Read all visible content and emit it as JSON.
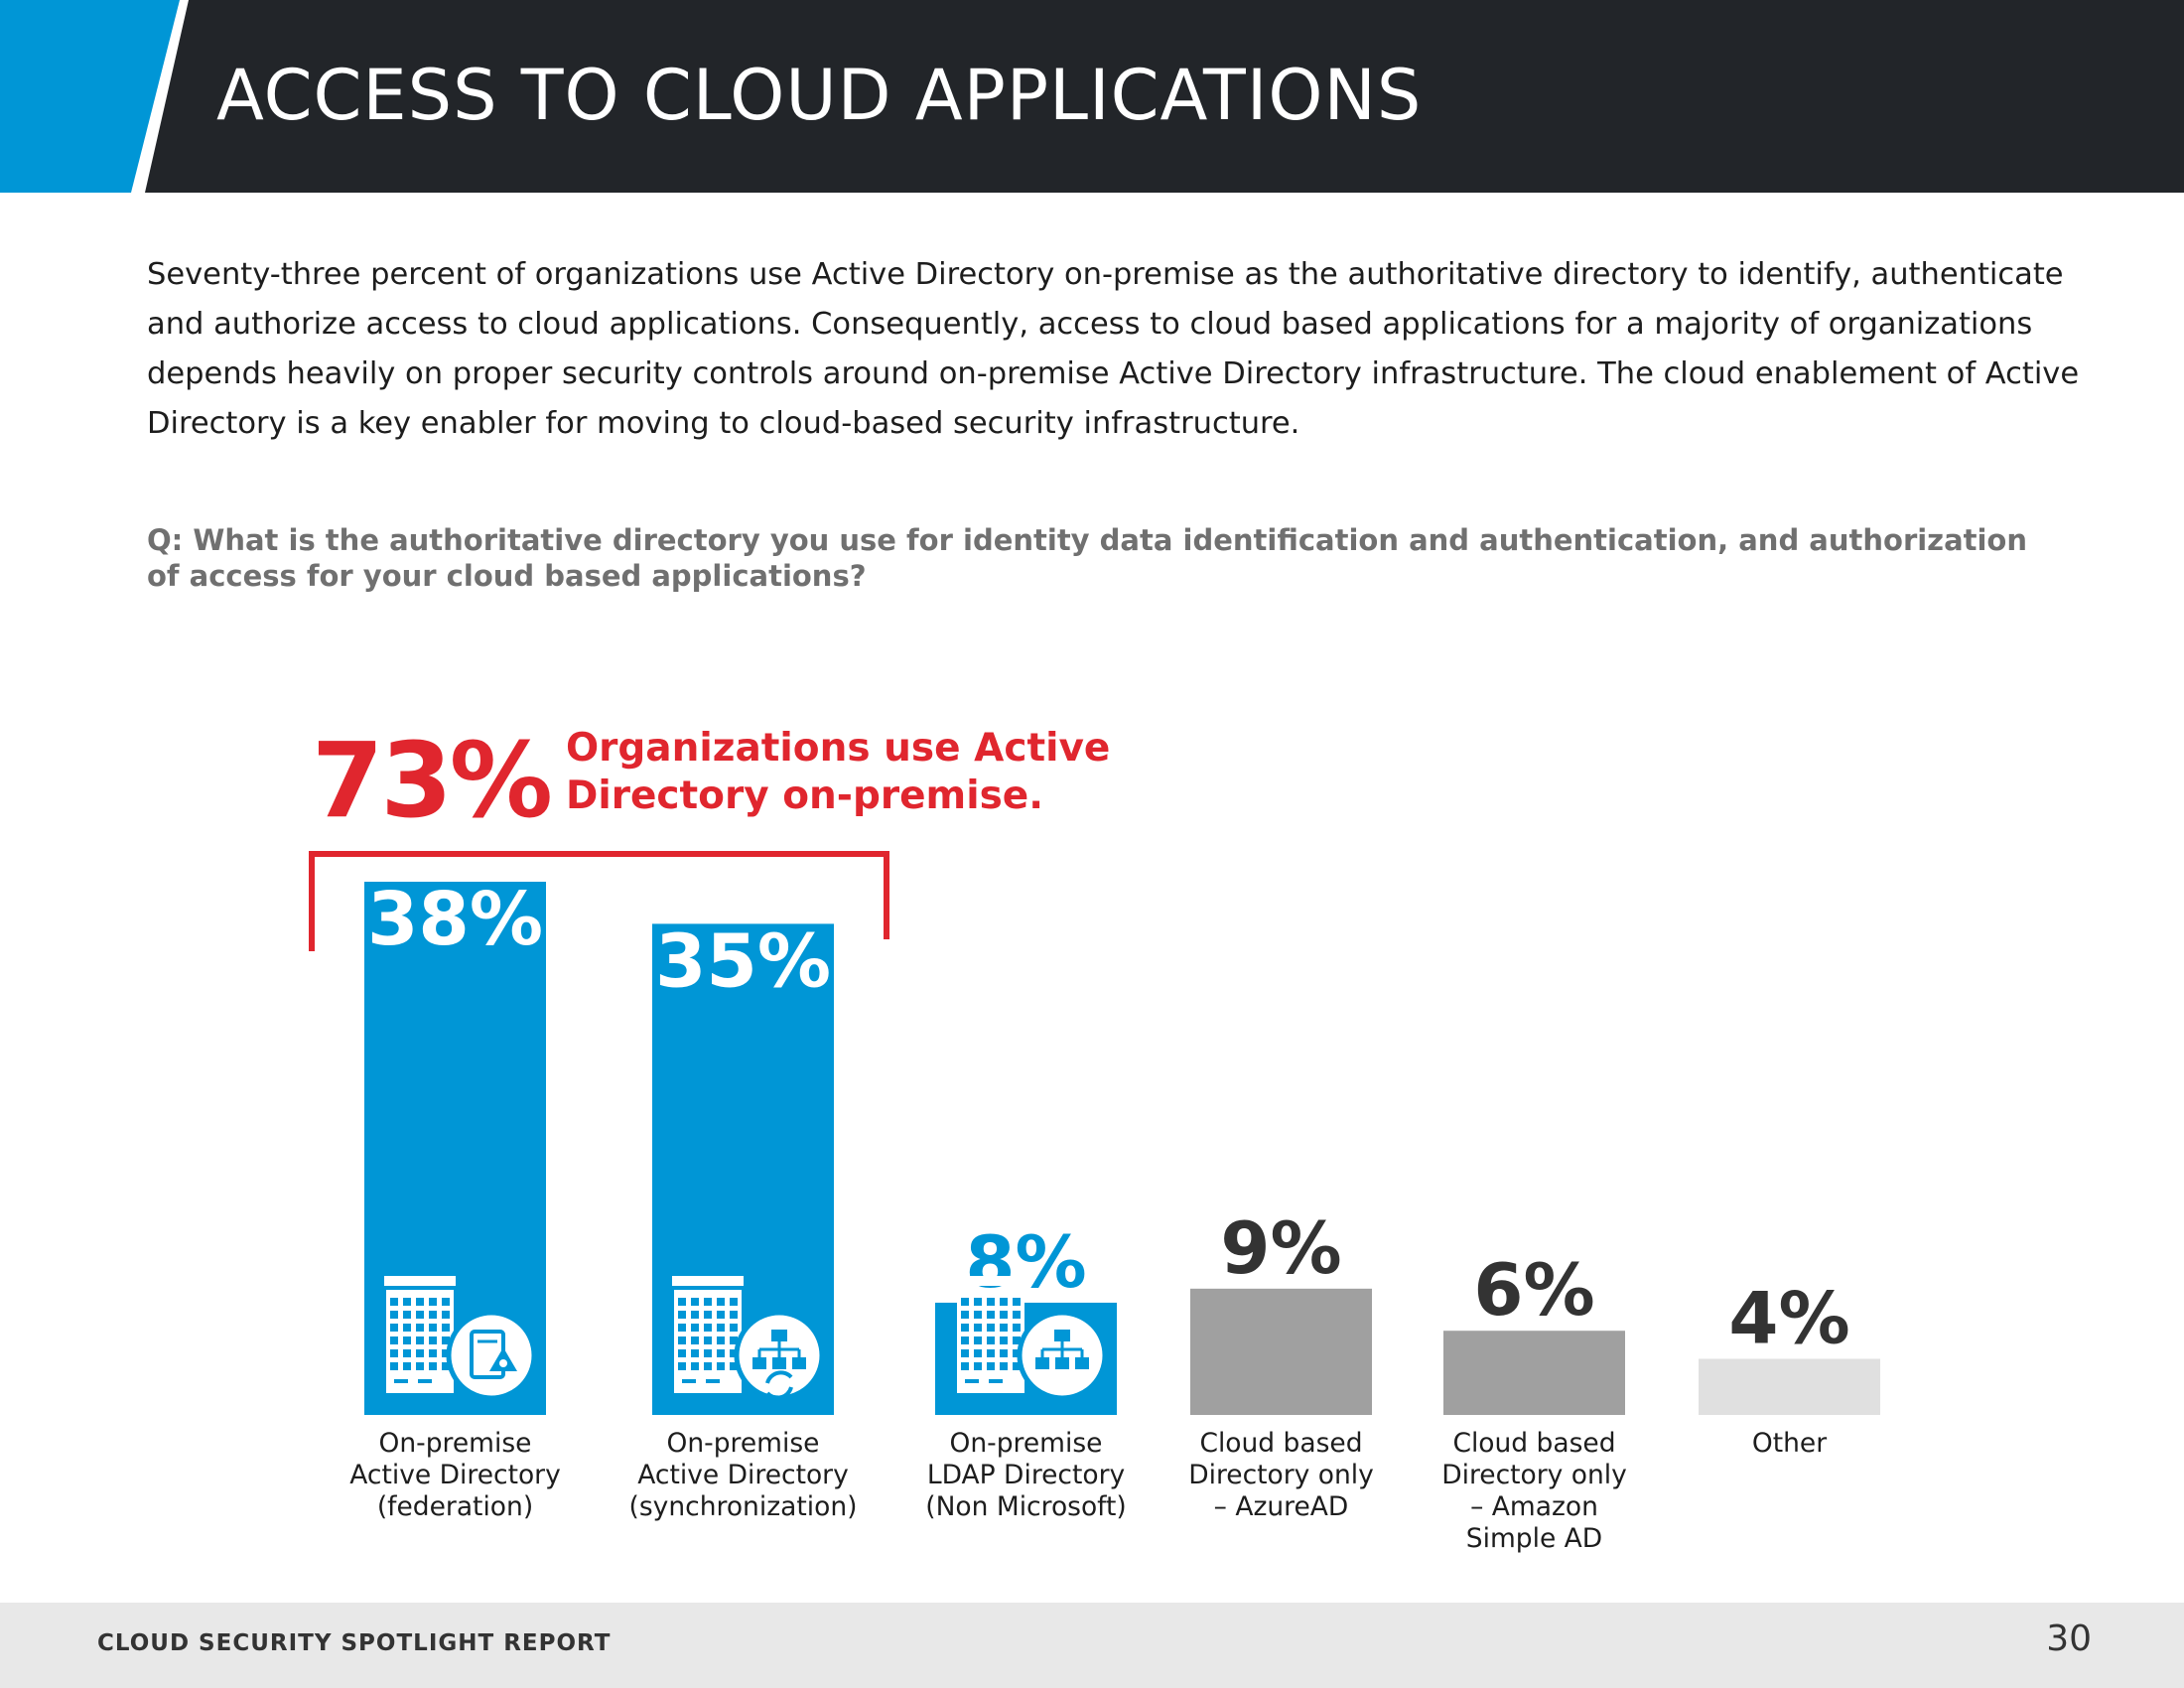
{
  "header": {
    "title": "ACCESS TO CLOUD APPLICATIONS",
    "accent_color": "#0096d6",
    "bar_color": "#222529"
  },
  "intro_text": "Seventy-three percent of organizations use Active Directory on-premise as the authoritative directory to identify, authenticate and authorize access to cloud applications. Consequently, access to cloud based applications for a majority of organizations depends heavily on proper security controls around on-premise Active Directory infrastructure. The cloud enablement of Active Directory is a key enabler for moving to cloud-based security infrastructure.",
  "question": "Q: What is the authoritative directory you use for identity data identification and authentication, and authorization of access for your cloud based applications?",
  "callout": {
    "value": "73%",
    "text": "Organizations use Active Directory on-premise.",
    "color": "#e0262e"
  },
  "chart_data": {
    "type": "bar",
    "title": "",
    "xlabel": "",
    "ylabel": "",
    "ylim": [
      0,
      38
    ],
    "grid": false,
    "categories": [
      [
        "On-premise",
        "Active Directory",
        "(federation)"
      ],
      [
        "On-premise",
        "Active Directory",
        "(synchronization)"
      ],
      [
        "On-premise",
        "LDAP Directory",
        "(Non Microsoft)"
      ],
      [
        "Cloud based",
        "Directory only",
        "– AzureAD"
      ],
      [
        "Cloud based",
        "Directory only",
        "– Amazon",
        "Simple AD"
      ],
      [
        "Other"
      ]
    ],
    "values": [
      38,
      35,
      8,
      9,
      6,
      4
    ],
    "data_labels": [
      "38%",
      "35%",
      "8%",
      "9%",
      "6%",
      "4%"
    ],
    "bar_colors": [
      "#0096d6",
      "#0096d6",
      "#0096d6",
      "#a0a0a0",
      "#a0a0a0",
      "#e0e0e0"
    ],
    "label_colors": [
      "#ffffff",
      "#ffffff",
      "#0096d6",
      "#333333",
      "#333333",
      "#333333"
    ],
    "icons": [
      "building-certificate-icon",
      "building-sync-icon",
      "building-network-icon",
      null,
      null,
      null
    ],
    "bracket": {
      "spans": [
        0,
        1
      ],
      "color": "#e0262e"
    }
  },
  "footer": {
    "label": "CLOUD SECURITY SPOTLIGHT REPORT",
    "page_number": "30"
  }
}
